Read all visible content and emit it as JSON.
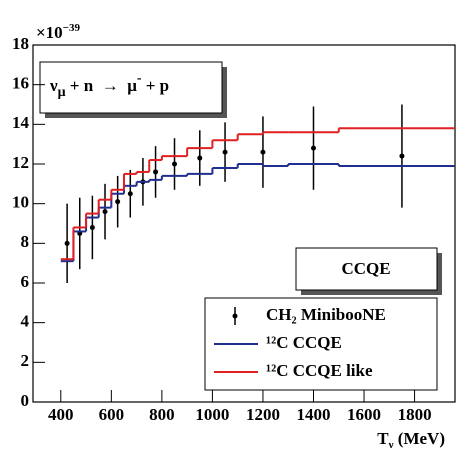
{
  "chart_data": {
    "type": "line",
    "annotation": {
      "nu": "ν",
      "nu_sub": "μ",
      "rest": " + n  →  μ",
      "mu_sup": "-",
      "end": " + p"
    },
    "label_box": "CCQE",
    "x_label": {
      "main": "T",
      "sub": "ν",
      "unit": " (MeV)"
    },
    "y_multiplier": {
      "base": "×10",
      "exp": "−39"
    },
    "xlim": [
      290,
      1960
    ],
    "ylim": [
      0,
      18
    ],
    "xticks": [
      400,
      600,
      800,
      1000,
      1200,
      1400,
      1600,
      1800
    ],
    "yticks": [
      0,
      2,
      4,
      6,
      8,
      10,
      12,
      14,
      16,
      18
    ],
    "series": [
      {
        "name": "CH₂ MinibooNE",
        "type": "errorbar",
        "color": "#000000",
        "x": [
          425,
          475,
          525,
          575,
          625,
          675,
          725,
          775,
          850,
          950,
          1050,
          1200,
          1400,
          1750
        ],
        "values": [
          8.0,
          8.5,
          8.8,
          9.6,
          10.1,
          10.5,
          11.1,
          11.6,
          12.0,
          12.3,
          12.6,
          12.6,
          12.8,
          12.4
        ],
        "errors": [
          2.0,
          1.8,
          1.6,
          1.4,
          1.3,
          1.2,
          1.2,
          1.3,
          1.3,
          1.4,
          1.5,
          1.8,
          2.1,
          2.6
        ]
      },
      {
        "name": "¹²C CCQE",
        "type": "step",
        "color": "#1f2f8f",
        "bins": [
          400,
          450,
          500,
          550,
          600,
          650,
          700,
          750,
          800,
          900,
          1000,
          1100,
          1200,
          1300,
          1500,
          1960
        ],
        "values": [
          7.1,
          8.6,
          9.3,
          9.8,
          10.5,
          10.9,
          11.1,
          11.2,
          11.4,
          11.5,
          11.8,
          12.0,
          11.9,
          12.0,
          11.9
        ]
      },
      {
        "name": "¹²C CCQE like",
        "type": "step",
        "color": "#e02020",
        "bins": [
          400,
          450,
          500,
          550,
          600,
          650,
          700,
          750,
          800,
          900,
          1000,
          1100,
          1200,
          1300,
          1500,
          1960
        ],
        "values": [
          7.2,
          8.8,
          9.5,
          10.2,
          10.7,
          11.5,
          11.6,
          12.2,
          12.4,
          12.8,
          13.2,
          13.5,
          13.6,
          13.6,
          13.8
        ]
      }
    ]
  }
}
